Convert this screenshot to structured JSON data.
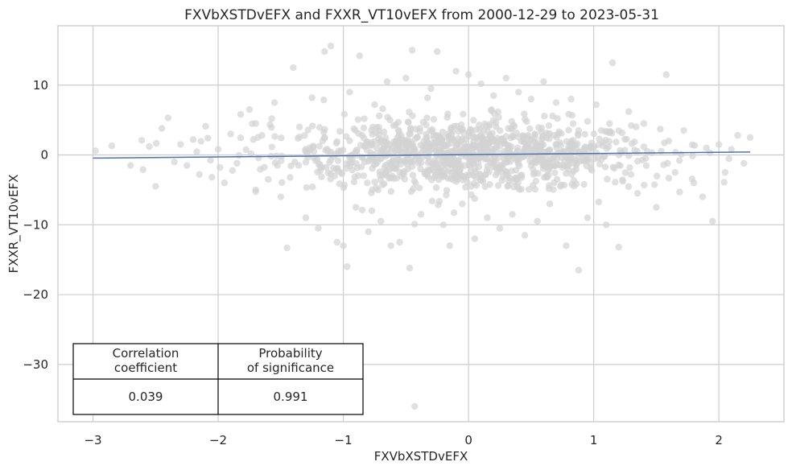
{
  "chart_data": {
    "type": "scatter",
    "title": "FXVbXSTDvEFX and FXXR_VT10vEFX from 2000-12-29 to 2023-05-31",
    "xlabel": "FXVbXSTDvEFX",
    "ylabel": "FXXR_VT10vEFX",
    "xlim": [
      -3.28,
      2.52
    ],
    "ylim": [
      -38.2,
      18.5
    ],
    "x_ticks": [
      -3,
      -2,
      -1,
      0,
      1,
      2
    ],
    "x_tick_labels": [
      "−3",
      "−2",
      "−1",
      "0",
      "1",
      "2"
    ],
    "y_ticks": [
      -30,
      -20,
      -10,
      0,
      10
    ],
    "y_tick_labels": [
      "−30",
      "−20",
      "−10",
      "0",
      "10"
    ],
    "grid": true,
    "marker_color": "#d3d3d3",
    "regression_color": "#4c72b0",
    "regression_line": {
      "x": [
        -3.0,
        2.25
      ],
      "y": [
        -0.45,
        0.42
      ]
    },
    "points": [
      [
        -2.98,
        0.6
      ],
      [
        -2.85,
        1.3
      ],
      [
        -2.6,
        -2.1
      ],
      [
        -2.55,
        1.2
      ],
      [
        -2.5,
        -4.5
      ],
      [
        -2.45,
        3.8
      ],
      [
        -2.4,
        5.3
      ],
      [
        -2.3,
        1.5
      ],
      [
        -2.25,
        -1.5
      ],
      [
        -2.2,
        2.2
      ],
      [
        -2.15,
        -2.8
      ],
      [
        -2.1,
        4.1
      ],
      [
        -2.05,
        -3.2
      ],
      [
        -2.0,
        0.8
      ],
      [
        -1.95,
        -4.0
      ],
      [
        -1.9,
        3.0
      ],
      [
        -1.85,
        -1.2
      ],
      [
        -1.82,
        5.8
      ],
      [
        -1.75,
        6.5
      ],
      [
        -1.7,
        -5.0
      ],
      [
        -1.65,
        2.8
      ],
      [
        -1.6,
        -3.5
      ],
      [
        -1.55,
        7.5
      ],
      [
        -1.5,
        -6.0
      ],
      [
        -1.45,
        -13.3
      ],
      [
        -1.4,
        12.5
      ],
      [
        -1.35,
        4.0
      ],
      [
        -1.3,
        -9.0
      ],
      [
        -1.25,
        8.2
      ],
      [
        -1.2,
        -10.5
      ],
      [
        -1.15,
        14.8
      ],
      [
        -1.1,
        15.6
      ],
      [
        -1.05,
        -12.5
      ],
      [
        -1.0,
        -13.0
      ],
      [
        -0.97,
        -16.0
      ],
      [
        -0.95,
        9.0
      ],
      [
        -0.9,
        -7.5
      ],
      [
        -0.87,
        14.2
      ],
      [
        -0.8,
        -11.0
      ],
      [
        -0.75,
        7.2
      ],
      [
        -0.7,
        -9.5
      ],
      [
        -0.65,
        10.5
      ],
      [
        -0.62,
        -13.0
      ],
      [
        -0.55,
        -12.5
      ],
      [
        -0.5,
        11.0
      ],
      [
        -0.47,
        -16.2
      ],
      [
        -0.45,
        15.0
      ],
      [
        -0.43,
        -36.0
      ],
      [
        -0.38,
        -8.5
      ],
      [
        -0.3,
        9.5
      ],
      [
        -0.25,
        14.8
      ],
      [
        -0.2,
        -10.0
      ],
      [
        -0.15,
        -13.0
      ],
      [
        -0.1,
        12.0
      ],
      [
        -0.05,
        -7.0
      ],
      [
        0.0,
        11.5
      ],
      [
        0.05,
        -12.0
      ],
      [
        0.1,
        10.2
      ],
      [
        0.15,
        -9.0
      ],
      [
        0.2,
        8.5
      ],
      [
        0.25,
        -10.5
      ],
      [
        0.3,
        11.0
      ],
      [
        0.35,
        -8.5
      ],
      [
        0.4,
        9.0
      ],
      [
        0.45,
        -11.5
      ],
      [
        0.5,
        8.0
      ],
      [
        0.55,
        -9.5
      ],
      [
        0.6,
        10.5
      ],
      [
        0.65,
        -7.0
      ],
      [
        0.7,
        7.5
      ],
      [
        0.78,
        -13.0
      ],
      [
        0.82,
        8.0
      ],
      [
        0.88,
        -16.5
      ],
      [
        0.95,
        -9.0
      ],
      [
        1.02,
        7.2
      ],
      [
        1.1,
        -10.0
      ],
      [
        1.15,
        13.2
      ],
      [
        1.2,
        -13.2
      ],
      [
        1.28,
        6.2
      ],
      [
        1.35,
        -5.5
      ],
      [
        1.4,
        4.5
      ],
      [
        1.5,
        -7.5
      ],
      [
        1.58,
        11.5
      ],
      [
        1.6,
        2.0
      ],
      [
        1.65,
        -2.5
      ],
      [
        1.72,
        3.5
      ],
      [
        1.8,
        -4.0
      ],
      [
        1.87,
        -6.0
      ],
      [
        1.95,
        -9.5
      ],
      [
        2.0,
        1.5
      ],
      [
        2.05,
        -2.5
      ],
      [
        2.1,
        0.8
      ],
      [
        2.15,
        2.8
      ],
      [
        2.2,
        -1.2
      ],
      [
        2.25,
        2.5
      ],
      [
        1.3,
        4.2
      ],
      [
        -1.7,
        4.5
      ],
      [
        -2.35,
        -1.0
      ],
      [
        1.9,
        1.0
      ],
      [
        -2.7,
        -1.5
      ]
    ],
    "cloud": {
      "x_center": 0.0,
      "x_spread": 0.75,
      "y_spread": 2.6,
      "count": 1100
    }
  },
  "table": {
    "headers": [
      "Correlation\ncoefficient",
      "Probability\nof significance"
    ],
    "values": [
      "0.039",
      "0.991"
    ]
  }
}
